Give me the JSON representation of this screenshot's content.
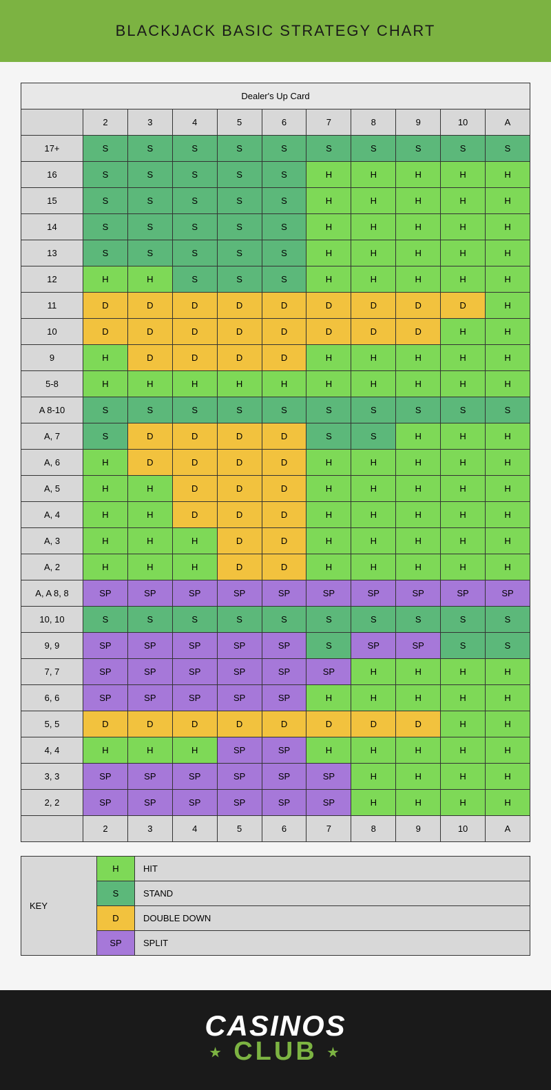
{
  "title": "BLACKJACK BASIC STRATEGY CHART",
  "dealer_header": "Dealer's Up Card",
  "dealer_cards": [
    "2",
    "3",
    "4",
    "5",
    "6",
    "7",
    "8",
    "9",
    "10",
    "A"
  ],
  "actions": {
    "S": {
      "label": "S",
      "color": "#5cb87a",
      "desc": "STAND"
    },
    "H": {
      "label": "H",
      "color": "#7ed957",
      "desc": "HIT"
    },
    "D": {
      "label": "D",
      "color": "#f2c23e",
      "desc": "DOUBLE DOWN"
    },
    "SP": {
      "label": "SP",
      "color": "#a678d9",
      "desc": "SPLIT"
    }
  },
  "key_order": [
    "H",
    "S",
    "D",
    "SP"
  ],
  "key_title": "KEY",
  "rows": [
    {
      "hand": "17+",
      "cells": [
        "S",
        "S",
        "S",
        "S",
        "S",
        "S",
        "S",
        "S",
        "S",
        "S"
      ]
    },
    {
      "hand": "16",
      "cells": [
        "S",
        "S",
        "S",
        "S",
        "S",
        "H",
        "H",
        "H",
        "H",
        "H"
      ]
    },
    {
      "hand": "15",
      "cells": [
        "S",
        "S",
        "S",
        "S",
        "S",
        "H",
        "H",
        "H",
        "H",
        "H"
      ]
    },
    {
      "hand": "14",
      "cells": [
        "S",
        "S",
        "S",
        "S",
        "S",
        "H",
        "H",
        "H",
        "H",
        "H"
      ]
    },
    {
      "hand": "13",
      "cells": [
        "S",
        "S",
        "S",
        "S",
        "S",
        "H",
        "H",
        "H",
        "H",
        "H"
      ]
    },
    {
      "hand": "12",
      "cells": [
        "H",
        "H",
        "S",
        "S",
        "S",
        "H",
        "H",
        "H",
        "H",
        "H"
      ]
    },
    {
      "hand": "11",
      "cells": [
        "D",
        "D",
        "D",
        "D",
        "D",
        "D",
        "D",
        "D",
        "D",
        "H"
      ]
    },
    {
      "hand": "10",
      "cells": [
        "D",
        "D",
        "D",
        "D",
        "D",
        "D",
        "D",
        "D",
        "H",
        "H"
      ]
    },
    {
      "hand": "9",
      "cells": [
        "H",
        "D",
        "D",
        "D",
        "D",
        "H",
        "H",
        "H",
        "H",
        "H"
      ]
    },
    {
      "hand": "5-8",
      "cells": [
        "H",
        "H",
        "H",
        "H",
        "H",
        "H",
        "H",
        "H",
        "H",
        "H"
      ]
    },
    {
      "hand": "A 8-10",
      "cells": [
        "S",
        "S",
        "S",
        "S",
        "S",
        "S",
        "S",
        "S",
        "S",
        "S"
      ]
    },
    {
      "hand": "A, 7",
      "cells": [
        "S",
        "D",
        "D",
        "D",
        "D",
        "S",
        "S",
        "H",
        "H",
        "H"
      ]
    },
    {
      "hand": "A, 6",
      "cells": [
        "H",
        "D",
        "D",
        "D",
        "D",
        "H",
        "H",
        "H",
        "H",
        "H"
      ]
    },
    {
      "hand": "A, 5",
      "cells": [
        "H",
        "H",
        "D",
        "D",
        "D",
        "H",
        "H",
        "H",
        "H",
        "H"
      ]
    },
    {
      "hand": "A, 4",
      "cells": [
        "H",
        "H",
        "D",
        "D",
        "D",
        "H",
        "H",
        "H",
        "H",
        "H"
      ]
    },
    {
      "hand": "A, 3",
      "cells": [
        "H",
        "H",
        "H",
        "D",
        "D",
        "H",
        "H",
        "H",
        "H",
        "H"
      ]
    },
    {
      "hand": "A, 2",
      "cells": [
        "H",
        "H",
        "H",
        "D",
        "D",
        "H",
        "H",
        "H",
        "H",
        "H"
      ]
    },
    {
      "hand": "A, A  8, 8",
      "cells": [
        "SP",
        "SP",
        "SP",
        "SP",
        "SP",
        "SP",
        "SP",
        "SP",
        "SP",
        "SP"
      ]
    },
    {
      "hand": "10, 10",
      "cells": [
        "S",
        "S",
        "S",
        "S",
        "S",
        "S",
        "S",
        "S",
        "S",
        "S"
      ]
    },
    {
      "hand": "9, 9",
      "cells": [
        "SP",
        "SP",
        "SP",
        "SP",
        "SP",
        "S",
        "SP",
        "SP",
        "S",
        "S"
      ]
    },
    {
      "hand": "7, 7",
      "cells": [
        "SP",
        "SP",
        "SP",
        "SP",
        "SP",
        "SP",
        "H",
        "H",
        "H",
        "H"
      ]
    },
    {
      "hand": "6, 6",
      "cells": [
        "SP",
        "SP",
        "SP",
        "SP",
        "SP",
        "H",
        "H",
        "H",
        "H",
        "H"
      ]
    },
    {
      "hand": "5, 5",
      "cells": [
        "D",
        "D",
        "D",
        "D",
        "D",
        "D",
        "D",
        "D",
        "H",
        "H"
      ]
    },
    {
      "hand": "4, 4",
      "cells": [
        "H",
        "H",
        "H",
        "SP",
        "SP",
        "H",
        "H",
        "H",
        "H",
        "H"
      ]
    },
    {
      "hand": "3, 3",
      "cells": [
        "SP",
        "SP",
        "SP",
        "SP",
        "SP",
        "SP",
        "H",
        "H",
        "H",
        "H"
      ]
    },
    {
      "hand": "2, 2",
      "cells": [
        "SP",
        "SP",
        "SP",
        "SP",
        "SP",
        "SP",
        "H",
        "H",
        "H",
        "H"
      ]
    }
  ],
  "footer": {
    "line1": "CASINOS",
    "line2": "CLUB"
  },
  "styling": {
    "header_bg": "#7cb342",
    "page_bg": "#f5f5f5",
    "cell_border": "#333333",
    "label_bg": "#d8d8d8",
    "footer_bg": "#1a1a1a",
    "logo_accent": "#7cb342",
    "font_family": "Arial",
    "cell_fontsize": 13
  }
}
